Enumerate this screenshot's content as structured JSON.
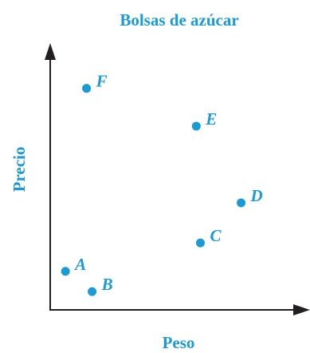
{
  "colors": {
    "accent": "#1a9bd7",
    "axis": "#231f20",
    "background": "#ffffff"
  },
  "chart_data": {
    "type": "scatter",
    "title": "Bolsas de azúcar",
    "xlabel": "Peso",
    "ylabel": "Precio",
    "xlim": [
      0,
      100
    ],
    "ylim": [
      0,
      100
    ],
    "grid": false,
    "axis_ticks": false,
    "legend": "none",
    "points": [
      {
        "label": "A",
        "x": 6.3,
        "y": 15.4
      },
      {
        "label": "B",
        "x": 17.3,
        "y": 7.3
      },
      {
        "label": "C",
        "x": 62.0,
        "y": 26.8
      },
      {
        "label": "D",
        "x": 78.8,
        "y": 42.8
      },
      {
        "label": "E",
        "x": 60.3,
        "y": 73.5
      },
      {
        "label": "F",
        "x": 15.0,
        "y": 88.6
      }
    ]
  }
}
